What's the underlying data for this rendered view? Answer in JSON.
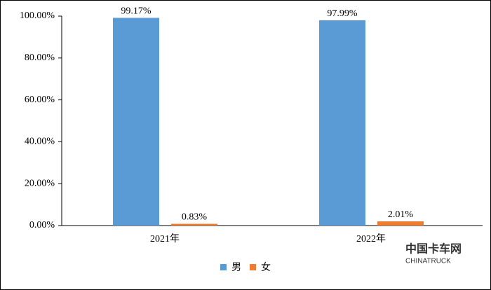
{
  "chart_data": {
    "type": "bar",
    "categories": [
      "2021年",
      "2022年"
    ],
    "series": [
      {
        "name": "男",
        "color": "#5b9bd5",
        "values": [
          99.17,
          97.99
        ],
        "value_labels": [
          "99.17%",
          "97.99%"
        ]
      },
      {
        "name": "女",
        "color": "#ed7d31",
        "values": [
          0.83,
          2.01
        ],
        "value_labels": [
          "0.83%",
          "2.01%"
        ]
      }
    ],
    "ylim": [
      0,
      100
    ],
    "yticks": [
      {
        "value": 0,
        "label": "0.00%"
      },
      {
        "value": 20,
        "label": "20.00%"
      },
      {
        "value": 40,
        "label": "40.00%"
      },
      {
        "value": 60,
        "label": "60.00%"
      },
      {
        "value": 80,
        "label": "80.00%"
      },
      {
        "value": 100,
        "label": "100.00%"
      }
    ],
    "grid": false,
    "legend": "bottom",
    "watermark": [
      "中国卡车网",
      "CHINATRUCK"
    ]
  }
}
